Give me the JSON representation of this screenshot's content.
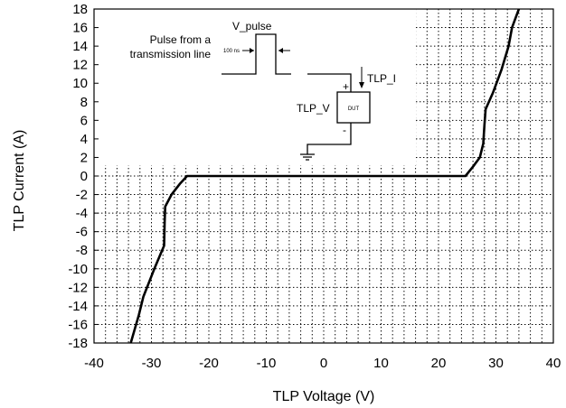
{
  "chart_data": {
    "type": "line",
    "title": "",
    "xlabel": "TLP Voltage (V)",
    "ylabel": "TLP Current (A)",
    "xlim": [
      -40,
      40
    ],
    "ylim": [
      -18,
      18
    ],
    "x_ticks": [
      -40,
      -30,
      -20,
      -10,
      0,
      10,
      20,
      30,
      40
    ],
    "y_ticks": [
      18,
      16,
      14,
      12,
      10,
      8,
      6,
      4,
      2,
      0,
      -2,
      -4,
      -6,
      -8,
      -10,
      -12,
      -14,
      -16,
      -18
    ],
    "grid": "dotted",
    "series": [
      {
        "color": "#000000",
        "points": [
          [
            -33.6,
            -18
          ],
          [
            -32.2,
            -15
          ],
          [
            -31.4,
            -13
          ],
          [
            -29.5,
            -10
          ],
          [
            -27.8,
            -7.5
          ],
          [
            -27.7,
            -5.0
          ],
          [
            -27.6,
            -3.3
          ],
          [
            -26.5,
            -2.0
          ],
          [
            -25.0,
            -0.8
          ],
          [
            -23.8,
            0.0
          ],
          [
            24.7,
            0.0
          ],
          [
            26.0,
            1.0
          ],
          [
            27.2,
            2.0
          ],
          [
            27.8,
            3.5
          ],
          [
            28.0,
            5.5
          ],
          [
            28.2,
            7.2
          ],
          [
            29.5,
            9.0
          ],
          [
            31.0,
            11.5
          ],
          [
            32.2,
            14.0
          ],
          [
            32.8,
            16.0
          ],
          [
            34.0,
            18.0
          ]
        ]
      }
    ],
    "inset": {
      "pulse_label": "V_pulse",
      "source_label_1": "Pulse from a",
      "source_label_2": "transmission line",
      "width_label": "100 ns",
      "current_label": "TLP_I",
      "voltage_label": "TLP_V",
      "plus_label": "+",
      "minus_label": "-",
      "dut_label": "DUT"
    }
  }
}
